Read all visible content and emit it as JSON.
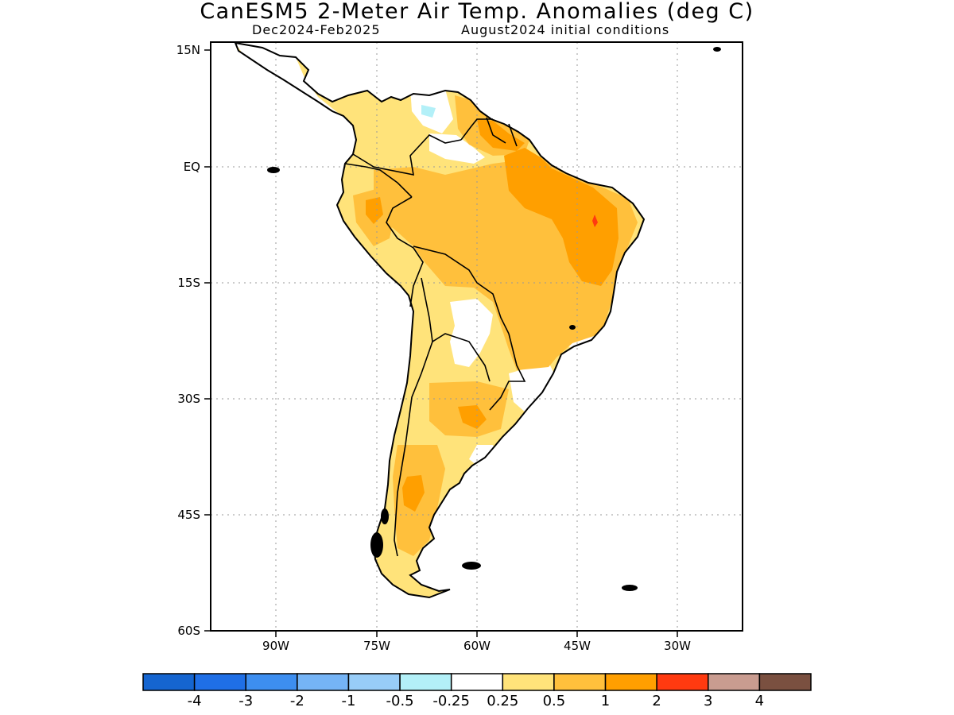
{
  "title": "CanESM5 2-Meter Air Temp. Anomalies (deg C)",
  "subtitle_left": "Dec2024-Feb2025",
  "subtitle_right": "August2024 initial conditions",
  "map": {
    "lat_range": [
      -60,
      15
    ],
    "lon_range": [
      -98,
      -28
    ],
    "lat_ticks": [
      {
        "value": 15,
        "label": "15N"
      },
      {
        "value": 0,
        "label": "EQ"
      },
      {
        "value": -15,
        "label": "15S"
      },
      {
        "value": -30,
        "label": "30S"
      },
      {
        "value": -45,
        "label": "45S"
      },
      {
        "value": -60,
        "label": "60S"
      }
    ],
    "lon_ticks": [
      {
        "value": -90,
        "label": "90W"
      },
      {
        "value": -75,
        "label": "75W"
      },
      {
        "value": -60,
        "label": "60W"
      },
      {
        "value": -45,
        "label": "45W"
      },
      {
        "value": -30,
        "label": "30W"
      }
    ],
    "grid": true
  },
  "colorbar": {
    "colors": [
      "#1565d0",
      "#1f6fe6",
      "#3d8ef0",
      "#75b4f6",
      "#98cdf8",
      "#b3f0f8",
      "#ffffff",
      "#ffe37a",
      "#ffc03c",
      "#ff9f00",
      "#ff3a10",
      "#c99c90",
      "#7a5040"
    ],
    "labels": [
      "-4",
      "-3",
      "-2",
      "-1",
      "-0.5",
      "-0.25",
      "0.25",
      "0.5",
      "1",
      "2",
      "3",
      "4"
    ]
  }
}
